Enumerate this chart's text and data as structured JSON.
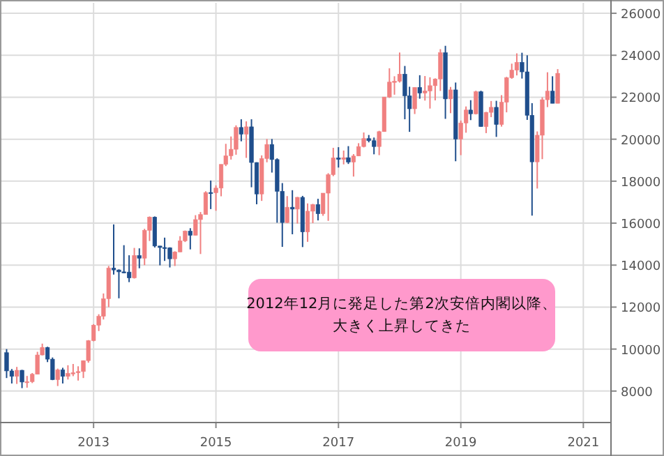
{
  "chart_data": {
    "type": "candlestick",
    "x": [
      "2011-08",
      "2011-09",
      "2011-10",
      "2011-11",
      "2011-12",
      "2012-01",
      "2012-02",
      "2012-03",
      "2012-04",
      "2012-05",
      "2012-06",
      "2012-07",
      "2012-08",
      "2012-09",
      "2012-10",
      "2012-11",
      "2012-12",
      "2013-01",
      "2013-02",
      "2013-03",
      "2013-04",
      "2013-05",
      "2013-06",
      "2013-07",
      "2013-08",
      "2013-09",
      "2013-10",
      "2013-11",
      "2013-12",
      "2014-01",
      "2014-02",
      "2014-03",
      "2014-04",
      "2014-05",
      "2014-06",
      "2014-07",
      "2014-08",
      "2014-09",
      "2014-10",
      "2014-11",
      "2014-12",
      "2015-01",
      "2015-02",
      "2015-03",
      "2015-04",
      "2015-05",
      "2015-06",
      "2015-07",
      "2015-08",
      "2015-09",
      "2015-10",
      "2015-11",
      "2015-12",
      "2016-01",
      "2016-02",
      "2016-03",
      "2016-04",
      "2016-05",
      "2016-06",
      "2016-07",
      "2016-08",
      "2016-09",
      "2016-10",
      "2016-11",
      "2016-12",
      "2017-01",
      "2017-02",
      "2017-03",
      "2017-04",
      "2017-05",
      "2017-06",
      "2017-07",
      "2017-08",
      "2017-09",
      "2017-10",
      "2017-11",
      "2017-12",
      "2018-01",
      "2018-02",
      "2018-03",
      "2018-04",
      "2018-05",
      "2018-06",
      "2018-07",
      "2018-08",
      "2018-09",
      "2018-10",
      "2018-11",
      "2018-12",
      "2019-01",
      "2019-02",
      "2019-03",
      "2019-04",
      "2019-05",
      "2019-06",
      "2019-07",
      "2019-08",
      "2019-09",
      "2019-10",
      "2019-11",
      "2019-12",
      "2020-01",
      "2020-02",
      "2020-03",
      "2020-04",
      "2020-05",
      "2020-06",
      "2020-07",
      "2020-08"
    ],
    "ohlc": [
      [
        9830,
        10000,
        8620,
        8960
      ],
      [
        8960,
        9050,
        8360,
        8700
      ],
      [
        8700,
        9150,
        8340,
        8990
      ],
      [
        8990,
        9010,
        8140,
        8430
      ],
      [
        8430,
        8720,
        8160,
        8450
      ],
      [
        8450,
        8860,
        8380,
        8800
      ],
      [
        8800,
        9870,
        8800,
        9720
      ],
      [
        9720,
        10260,
        9700,
        10080
      ],
      [
        10080,
        10110,
        9380,
        9520
      ],
      [
        9520,
        9600,
        8520,
        8540
      ],
      [
        8540,
        9070,
        8240,
        9010
      ],
      [
        9010,
        9110,
        8360,
        8700
      ],
      [
        8700,
        9230,
        8550,
        8840
      ],
      [
        8840,
        9290,
        8710,
        8870
      ],
      [
        8870,
        9180,
        8500,
        8930
      ],
      [
        8930,
        9460,
        8620,
        9450
      ],
      [
        9450,
        10430,
        9350,
        10400
      ],
      [
        10400,
        11190,
        10370,
        11140
      ],
      [
        11140,
        11660,
        10860,
        11560
      ],
      [
        11560,
        12650,
        11410,
        12400
      ],
      [
        12400,
        13960,
        12000,
        13860
      ],
      [
        13860,
        15940,
        13550,
        13770
      ],
      [
        13770,
        13800,
        12420,
        13680
      ],
      [
        13680,
        14950,
        13620,
        13670
      ],
      [
        13670,
        14470,
        13190,
        13390
      ],
      [
        13390,
        14820,
        13360,
        14460
      ],
      [
        14460,
        14800,
        13850,
        14330
      ],
      [
        14330,
        15730,
        14000,
        15660
      ],
      [
        15660,
        16320,
        15150,
        16290
      ],
      [
        16290,
        16320,
        14840,
        14910
      ],
      [
        14910,
        14920,
        13990,
        14840
      ],
      [
        14840,
        15310,
        14200,
        14830
      ],
      [
        14830,
        14850,
        13890,
        14300
      ],
      [
        14300,
        14660,
        13960,
        14630
      ],
      [
        14630,
        15380,
        14620,
        15160
      ],
      [
        15160,
        15650,
        15100,
        15620
      ],
      [
        15620,
        15760,
        14750,
        15420
      ],
      [
        15420,
        16380,
        15420,
        16170
      ],
      [
        16170,
        16530,
        14530,
        16410
      ],
      [
        16410,
        17520,
        16410,
        17460
      ],
      [
        17460,
        18030,
        16670,
        17450
      ],
      [
        17450,
        17800,
        16590,
        17670
      ],
      [
        17670,
        18800,
        17280,
        18800
      ],
      [
        18800,
        19780,
        18720,
        19210
      ],
      [
        19210,
        20130,
        19030,
        19520
      ],
      [
        19520,
        20660,
        19260,
        20560
      ],
      [
        20560,
        20950,
        19900,
        20240
      ],
      [
        20240,
        20850,
        19110,
        20590
      ],
      [
        20590,
        20950,
        17710,
        18890
      ],
      [
        18890,
        18900,
        16900,
        17390
      ],
      [
        17390,
        19230,
        17060,
        19080
      ],
      [
        19080,
        20010,
        18900,
        19750
      ],
      [
        19750,
        20010,
        18410,
        19030
      ],
      [
        19030,
        19090,
        16020,
        17520
      ],
      [
        17520,
        17910,
        14870,
        16030
      ],
      [
        16030,
        17290,
        16000,
        16760
      ],
      [
        16760,
        17570,
        15470,
        16670
      ],
      [
        16670,
        17250,
        15980,
        17230
      ],
      [
        17230,
        17300,
        14860,
        15580
      ],
      [
        15580,
        16940,
        15110,
        16570
      ],
      [
        16570,
        16920,
        16000,
        16890
      ],
      [
        16890,
        17160,
        16130,
        16450
      ],
      [
        16450,
        17430,
        16350,
        17430
      ],
      [
        17430,
        18380,
        16110,
        18310
      ],
      [
        18310,
        19590,
        18240,
        19110
      ],
      [
        19110,
        19620,
        18650,
        19040
      ],
      [
        19040,
        19460,
        18800,
        19120
      ],
      [
        19120,
        19670,
        18820,
        18910
      ],
      [
        18910,
        19290,
        18220,
        19200
      ],
      [
        19200,
        19810,
        19190,
        19650
      ],
      [
        19650,
        20320,
        19610,
        20030
      ],
      [
        20030,
        20200,
        19850,
        19930
      ],
      [
        19930,
        20080,
        19280,
        19650
      ],
      [
        19650,
        20400,
        19240,
        20360
      ],
      [
        20360,
        22010,
        20360,
        22010
      ],
      [
        22010,
        23380,
        21970,
        22720
      ],
      [
        22720,
        23000,
        22120,
        22760
      ],
      [
        22760,
        24130,
        22700,
        23100
      ],
      [
        23100,
        23490,
        20950,
        22070
      ],
      [
        22070,
        22500,
        20350,
        21450
      ],
      [
        21450,
        22470,
        21200,
        22470
      ],
      [
        22470,
        23050,
        21930,
        22200
      ],
      [
        22200,
        23010,
        21840,
        22300
      ],
      [
        22300,
        22950,
        21460,
        22550
      ],
      [
        22550,
        22900,
        21850,
        22870
      ],
      [
        22870,
        24290,
        22300,
        24120
      ],
      [
        24120,
        24450,
        20970,
        21920
      ],
      [
        21920,
        22490,
        21240,
        22350
      ],
      [
        22350,
        22700,
        18950,
        20010
      ],
      [
        20010,
        20890,
        19240,
        20770
      ],
      [
        20770,
        21560,
        20310,
        21390
      ],
      [
        21390,
        21860,
        20910,
        21210
      ],
      [
        21210,
        22310,
        21180,
        22260
      ],
      [
        22260,
        22310,
        20600,
        20600
      ],
      [
        20600,
        21300,
        20290,
        21280
      ],
      [
        21280,
        21820,
        21050,
        21520
      ],
      [
        21520,
        21830,
        20110,
        20700
      ],
      [
        20700,
        22100,
        20600,
        21760
      ],
      [
        21760,
        22970,
        21280,
        22930
      ],
      [
        22930,
        23600,
        22880,
        23290
      ],
      [
        23290,
        24090,
        23040,
        23660
      ],
      [
        23660,
        24120,
        22890,
        23210
      ],
      [
        23210,
        24000,
        20920,
        21140
      ],
      [
        21140,
        21720,
        16360,
        18920
      ],
      [
        18920,
        20370,
        17650,
        20190
      ],
      [
        20190,
        22000,
        19050,
        21880
      ],
      [
        21880,
        23190,
        21530,
        22290
      ],
      [
        22290,
        23000,
        21710,
        21710
      ],
      [
        21710,
        23340,
        21710,
        23140
      ]
    ],
    "colors": [
      "#1f4e8c",
      "#1f4e8c",
      "#f08080",
      "#1f4e8c",
      "#f08080",
      "#f08080",
      "#f08080",
      "#f08080",
      "#1f4e8c",
      "#1f4e8c",
      "#f08080",
      "#1f4e8c",
      "#f08080",
      "#f08080",
      "#f08080",
      "#f08080",
      "#f08080",
      "#f08080",
      "#f08080",
      "#f08080",
      "#f08080",
      "#1f4e8c",
      "#1f4e8c",
      "#1f4e8c",
      "#1f4e8c",
      "#f08080",
      "#1f4e8c",
      "#f08080",
      "#f08080",
      "#1f4e8c",
      "#1f4e8c",
      "#1f4e8c",
      "#1f4e8c",
      "#f08080",
      "#f08080",
      "#f08080",
      "#1f4e8c",
      "#f08080",
      "#f08080",
      "#f08080",
      "#1f4e8c",
      "#f08080",
      "#f08080",
      "#f08080",
      "#f08080",
      "#f08080",
      "#1f4e8c",
      "#f08080",
      "#1f4e8c",
      "#1f4e8c",
      "#f08080",
      "#f08080",
      "#1f4e8c",
      "#1f4e8c",
      "#1f4e8c",
      "#f08080",
      "#1f4e8c",
      "#f08080",
      "#1f4e8c",
      "#f08080",
      "#f08080",
      "#1f4e8c",
      "#f08080",
      "#f08080",
      "#f08080",
      "#1f4e8c",
      "#f08080",
      "#1f4e8c",
      "#f08080",
      "#f08080",
      "#f08080",
      "#1f4e8c",
      "#1f4e8c",
      "#f08080",
      "#f08080",
      "#f08080",
      "#f08080",
      "#f08080",
      "#1f4e8c",
      "#1f4e8c",
      "#f08080",
      "#1f4e8c",
      "#f08080",
      "#f08080",
      "#f08080",
      "#f08080",
      "#1f4e8c",
      "#f08080",
      "#1f4e8c",
      "#f08080",
      "#f08080",
      "#1f4e8c",
      "#f08080",
      "#1f4e8c",
      "#f08080",
      "#f08080",
      "#1f4e8c",
      "#f08080",
      "#f08080",
      "#f08080",
      "#f08080",
      "#1f4e8c",
      "#1f4e8c",
      "#1f4e8c",
      "#f08080",
      "#f08080",
      "#f08080",
      "#1f4e8c",
      "#f08080"
    ],
    "xlim": [
      "2011-07-01",
      "2021-06-15"
    ],
    "xticks": [
      "2013",
      "2015",
      "2017",
      "2019",
      "2021"
    ],
    "ylim": [
      6500,
      26500
    ],
    "yticks": [
      8000,
      10000,
      12000,
      14000,
      16000,
      18000,
      20000,
      22000,
      24000,
      26000
    ],
    "grid": true,
    "annotations": [
      "2012年12月に発足した第2次安倍内閣以降、",
      "大きく上昇してきた"
    ]
  }
}
